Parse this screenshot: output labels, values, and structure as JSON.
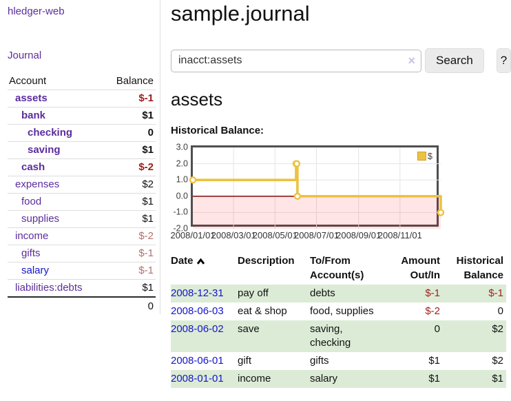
{
  "sidebar": {
    "brand": "hledger-web",
    "journal_link": "Journal",
    "accounts_table": {
      "headers": [
        "Account",
        "Balance"
      ],
      "rows": [
        {
          "name": "assets",
          "level": 1,
          "bold": true,
          "balance": "$-1",
          "balance_style": "neg-strong",
          "link_style": "purple"
        },
        {
          "name": "bank",
          "level": 2,
          "bold": true,
          "balance": "$1",
          "balance_style": "normal",
          "link_style": "purple"
        },
        {
          "name": "checking",
          "level": 3,
          "bold": true,
          "balance": "0",
          "balance_style": "normal",
          "link_style": "purple"
        },
        {
          "name": "saving",
          "level": 3,
          "bold": true,
          "balance": "$1",
          "balance_style": "normal",
          "link_style": "purple"
        },
        {
          "name": "cash",
          "level": 2,
          "bold": true,
          "balance": "$-2",
          "balance_style": "neg-strong",
          "link_style": "purple"
        },
        {
          "name": "expenses",
          "level": 1,
          "bold": false,
          "balance": "$2",
          "balance_style": "normal",
          "link_style": "purple"
        },
        {
          "name": "food",
          "level": 2,
          "bold": false,
          "balance": "$1",
          "balance_style": "normal",
          "link_style": "purple"
        },
        {
          "name": "supplies",
          "level": 2,
          "bold": false,
          "balance": "$1",
          "balance_style": "normal",
          "link_style": "purple"
        },
        {
          "name": "income",
          "level": 1,
          "bold": false,
          "balance": "$-2",
          "balance_style": "neg-soft",
          "link_style": "purple"
        },
        {
          "name": "gifts",
          "level": 2,
          "bold": false,
          "balance": "$-1",
          "balance_style": "neg-soft",
          "link_style": "purple"
        },
        {
          "name": "salary",
          "level": 2,
          "bold": false,
          "balance": "$-1",
          "balance_style": "neg-soft",
          "link_style": "blue"
        },
        {
          "name": "liabilities:debts",
          "level": 1,
          "bold": false,
          "balance": "$1",
          "balance_style": "normal",
          "link_style": "purple"
        }
      ],
      "total": "0"
    }
  },
  "header": {
    "title": "sample.journal"
  },
  "search": {
    "query": "inacct:assets",
    "clear_icon": "×",
    "button_label": "Search",
    "help_label": "?"
  },
  "account_page": {
    "heading": "assets"
  },
  "chart_data": {
    "type": "line",
    "style": "steps",
    "title": "Historical Balance:",
    "series": [
      {
        "name": "$",
        "color": "#edc240",
        "points": [
          [
            "2008-01-01",
            1
          ],
          [
            "2008-06-01",
            2
          ],
          [
            "2008-06-02",
            2
          ],
          [
            "2008-06-03",
            0
          ],
          [
            "2008-12-31",
            -1
          ]
        ]
      }
    ],
    "xlim": [
      "2008-01-01",
      "2008-12-31"
    ],
    "ylim": [
      -2,
      3
    ],
    "x_ticks": [
      {
        "label": "2008/01/01",
        "date": "2008-01-01"
      },
      {
        "label": "2008/03/01",
        "date": "2008-03-01"
      },
      {
        "label": "2008/05/01",
        "date": "2008-05-01"
      },
      {
        "label": "2008/07/01",
        "date": "2008-07-01"
      },
      {
        "label": "2008/09/01",
        "date": "2008-09-01"
      },
      {
        "label": "2008/11/01",
        "date": "2008-11-01"
      }
    ],
    "y_ticks": [
      {
        "label": "3.0",
        "value": 3
      },
      {
        "label": "2.0",
        "value": 2
      },
      {
        "label": "1.0",
        "value": 1
      },
      {
        "label": "0.0",
        "value": 0
      },
      {
        "label": "-1.0",
        "value": -1
      },
      {
        "label": "-2.0",
        "value": -2
      }
    ],
    "grid": true,
    "grid_color": "#e4e4e4",
    "negative_fill": "rgba(255,0,0,0.10)",
    "zero_line_color": "#8b1c1c",
    "legend_position": "top-right"
  },
  "register_table": {
    "headers": [
      "Date",
      "Description",
      "To/From Account(s)",
      "Amount Out/In",
      "Historical Balance"
    ],
    "sort_icon": "chevron-up",
    "rows": [
      {
        "date": "2008-12-31",
        "description": "pay off",
        "accounts": "debts",
        "amount": "$-1",
        "amount_neg": true,
        "balance": "$-1",
        "balance_neg": true
      },
      {
        "date": "2008-06-03",
        "description": "eat & shop",
        "accounts": "food, supplies",
        "amount": "$-2",
        "amount_neg": true,
        "balance": "0",
        "balance_neg": false
      },
      {
        "date": "2008-06-02",
        "description": "save",
        "accounts": "saving, checking",
        "amount": "0",
        "amount_neg": false,
        "balance": "$2",
        "balance_neg": false
      },
      {
        "date": "2008-06-01",
        "description": "gift",
        "accounts": "gifts",
        "amount": "$1",
        "amount_neg": false,
        "balance": "$2",
        "balance_neg": false
      },
      {
        "date": "2008-01-01",
        "description": "income",
        "accounts": "salary",
        "amount": "$1",
        "amount_neg": false,
        "balance": "$1",
        "balance_neg": false
      }
    ]
  },
  "colors": {
    "link_purple": "#5b2d9e",
    "link_blue": "#1414cc",
    "negative_strong": "#9e1c1c",
    "negative_soft": "#b36f6f",
    "row_stripe_green": "#dcebd6",
    "series_gold": "#edc240"
  }
}
